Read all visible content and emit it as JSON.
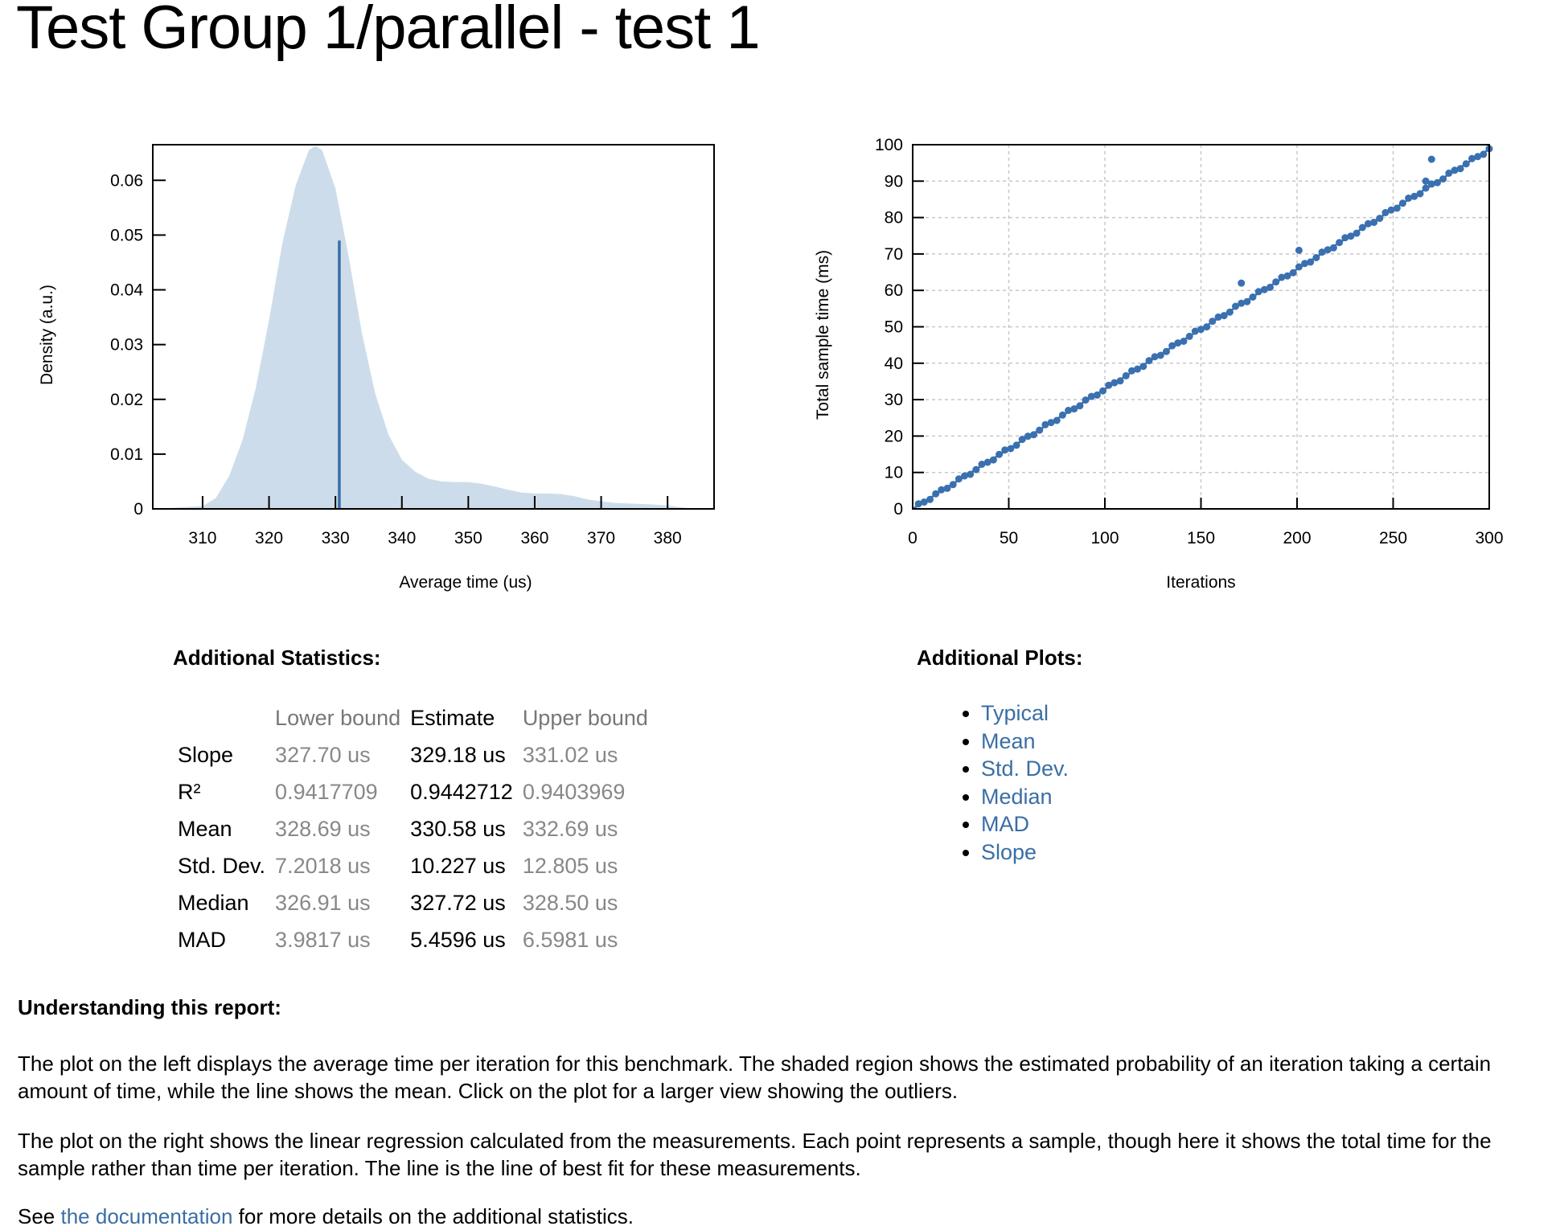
{
  "page": {
    "title": "Test Group 1/parallel - test 1"
  },
  "left_plot": {
    "xlabel": "Average time (us)",
    "ylabel": "Density (a.u.)"
  },
  "right_plot": {
    "xlabel": "Iterations",
    "ylabel": "Total sample time (ms)"
  },
  "chart_data": [
    {
      "type": "area",
      "xlabel": "Average time (us)",
      "ylabel": "Density (a.u.)",
      "xlim": [
        302.5,
        387
      ],
      "ylim": [
        0,
        0.0665
      ],
      "x_ticks": [
        310,
        320,
        330,
        340,
        350,
        360,
        370,
        380
      ],
      "y_ticks": [
        0,
        0.01,
        0.02,
        0.03,
        0.04,
        0.05,
        0.06
      ],
      "y_tick_labels": [
        "0",
        "0.01",
        "0.02",
        "0.03",
        "0.04",
        "0.05",
        "0.06"
      ],
      "grid": false,
      "density_curve": {
        "x": [
          302.5,
          310,
          312,
          314,
          316,
          318,
          320,
          322,
          324,
          326,
          327,
          328,
          330,
          332,
          334,
          336,
          338,
          340,
          342,
          344,
          346,
          348,
          350,
          352,
          354,
          356,
          358,
          360,
          362,
          364,
          366,
          368,
          370,
          372,
          374,
          376,
          378,
          380,
          382,
          384.5
        ],
        "y": [
          0,
          0.0005,
          0.002,
          0.006,
          0.0125,
          0.022,
          0.0345,
          0.0485,
          0.059,
          0.0655,
          0.0663,
          0.0655,
          0.0585,
          0.046,
          0.032,
          0.021,
          0.0135,
          0.009,
          0.0068,
          0.0055,
          0.005,
          0.0049,
          0.0049,
          0.0046,
          0.0041,
          0.0035,
          0.003,
          0.0028,
          0.0028,
          0.0027,
          0.0023,
          0.0017,
          0.0014,
          0.0011,
          0.001,
          0.0009,
          0.0008,
          0.0006,
          0.0003,
          0
        ]
      },
      "mean": {
        "x": 330.58,
        "y": 0.049
      }
    },
    {
      "type": "scatter",
      "xlabel": "Iterations",
      "ylabel": "Total sample time (ms)",
      "xlim": [
        0,
        300
      ],
      "ylim": [
        0,
        100
      ],
      "x_ticks": [
        0,
        50,
        100,
        150,
        200,
        250,
        300
      ],
      "y_ticks": [
        0,
        10,
        20,
        30,
        40,
        50,
        60,
        70,
        80,
        90,
        100
      ],
      "grid": true,
      "regression_line": {
        "x": [
          0,
          300
        ],
        "y": [
          0,
          98.75
        ]
      },
      "outliers": [
        {
          "x": 171,
          "y": 62
        },
        {
          "x": 201,
          "y": 71
        },
        {
          "x": 267,
          "y": 90
        },
        {
          "x": 270,
          "y": 96
        }
      ],
      "sample_step": 3,
      "sample_count": 100
    }
  ],
  "additional_statistics": {
    "heading": "Additional Statistics:",
    "headers": {
      "lower": "Lower bound",
      "estimate": "Estimate",
      "upper": "Upper bound"
    },
    "rows": [
      {
        "label": "Slope",
        "lower": "327.70 us",
        "estimate": "329.18 us",
        "upper": "331.02 us"
      },
      {
        "label": "R²",
        "lower": "0.9417709",
        "estimate": "0.9442712",
        "upper": "0.9403969"
      },
      {
        "label": "Mean",
        "lower": "328.69 us",
        "estimate": "330.58 us",
        "upper": "332.69 us"
      },
      {
        "label": "Std. Dev.",
        "lower": "7.2018 us",
        "estimate": "10.227 us",
        "upper": "12.805 us"
      },
      {
        "label": "Median",
        "lower": "326.91 us",
        "estimate": "327.72 us",
        "upper": "328.50 us"
      },
      {
        "label": "MAD",
        "lower": "3.9817 us",
        "estimate": "5.4596 us",
        "upper": "6.5981 us"
      }
    ]
  },
  "additional_plots": {
    "heading": "Additional Plots:",
    "links": [
      "Typical",
      "Mean",
      "Std. Dev.",
      "Median",
      "MAD",
      "Slope"
    ]
  },
  "understanding": {
    "heading": "Understanding this report:",
    "para1": "The plot on the left displays the average time per iteration for this benchmark. The shaded region shows the estimated probability of an iteration taking a certain amount of time, while the line shows the mean. Click on the plot for a larger view showing the outliers.",
    "para2": "The plot on the right shows the linear regression calculated from the measurements. Each point represents a sample, though here it shows the total time for the sample rather than time per iteration. The line is the line of best fit for these measurements.",
    "see_prefix": "See ",
    "see_link": "the documentation",
    "see_suffix": " for more details on the additional statistics."
  },
  "colors": {
    "accent": "#3a6ea5",
    "density_fill": "#cddcea",
    "point": "#3a70b0",
    "muted_text": "#888888"
  }
}
